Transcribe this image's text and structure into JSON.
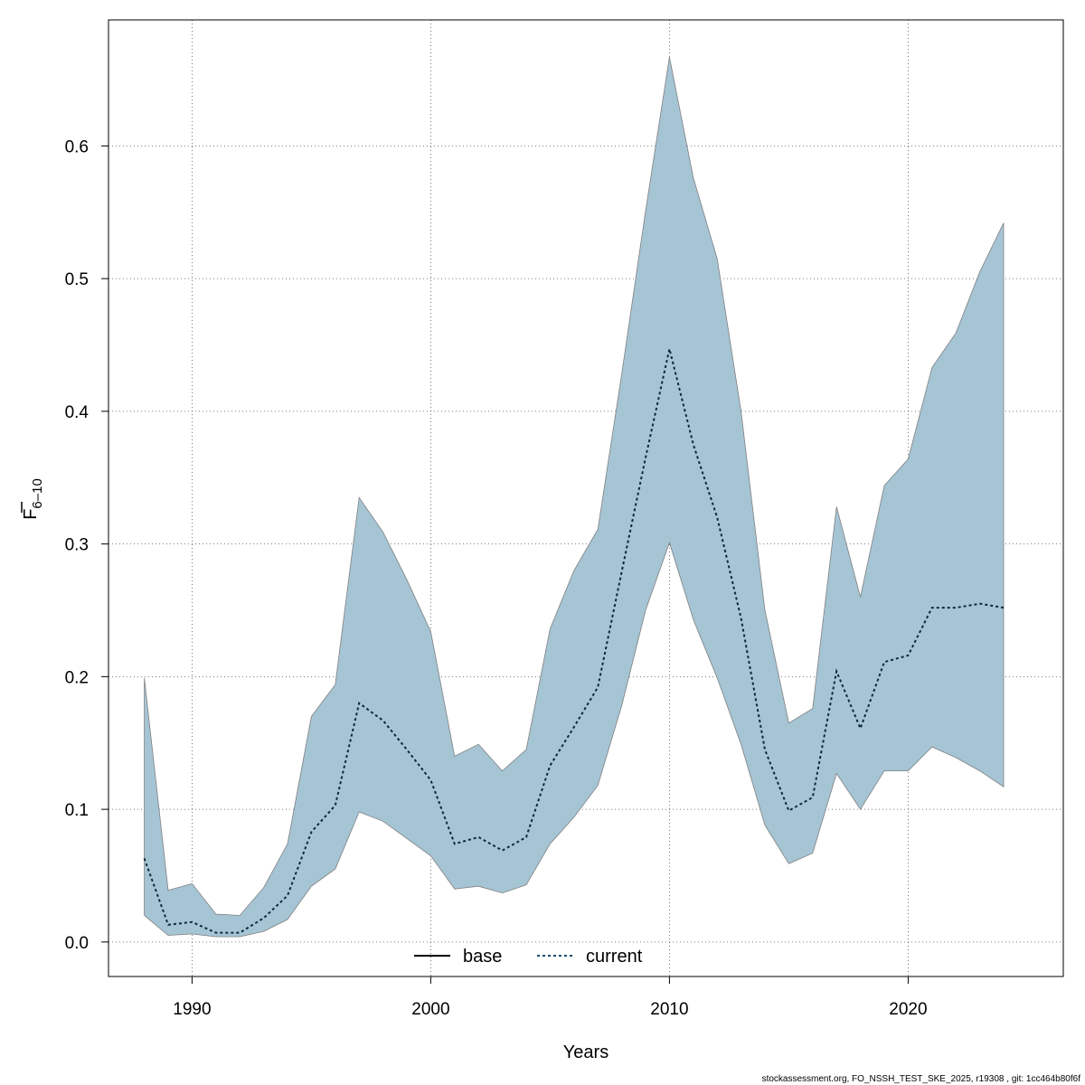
{
  "chart_data": {
    "type": "area",
    "xlabel": "Years",
    "ylabel": {
      "main": "F",
      "subscript": "6–10"
    },
    "xlim": [
      1986.5,
      2026.5
    ],
    "ylim": [
      -0.026,
      0.695
    ],
    "x_ticks": [
      1990,
      2000,
      2010,
      2020
    ],
    "y_ticks": [
      0.0,
      0.1,
      0.2,
      0.3,
      0.4,
      0.5,
      0.6
    ],
    "y_tick_labels": [
      "0.0",
      "0.1",
      "0.2",
      "0.3",
      "0.4",
      "0.5",
      "0.6"
    ],
    "grid": true,
    "legend_placement": "bottom",
    "legend": [
      {
        "label": "base",
        "style": "solid",
        "color": "#000000"
      },
      {
        "label": "current",
        "style": "dotted",
        "color": "#0a4d6e"
      }
    ],
    "band_color": "#a5c4d4",
    "band_edge_color": "#808080",
    "x": [
      1988,
      1989,
      1990,
      1991,
      1992,
      1993,
      1994,
      1995,
      1996,
      1997,
      1998,
      1999,
      2000,
      2001,
      2002,
      2003,
      2004,
      2005,
      2006,
      2007,
      2008,
      2009,
      2010,
      2011,
      2012,
      2013,
      2014,
      2015,
      2016,
      2017,
      2018,
      2019,
      2020,
      2021,
      2022,
      2023,
      2024
    ],
    "series": [
      {
        "name": "current",
        "values": [
          0.063,
          0.013,
          0.015,
          0.007,
          0.007,
          0.018,
          0.035,
          0.083,
          0.103,
          0.18,
          0.167,
          0.145,
          0.122,
          0.074,
          0.079,
          0.069,
          0.079,
          0.133,
          0.162,
          0.192,
          0.279,
          0.365,
          0.447,
          0.375,
          0.32,
          0.244,
          0.145,
          0.099,
          0.109,
          0.204,
          0.161,
          0.211,
          0.216,
          0.252,
          0.252,
          0.255,
          0.252
        ],
        "lower": [
          0.02,
          0.005,
          0.006,
          0.004,
          0.004,
          0.008,
          0.017,
          0.042,
          0.055,
          0.098,
          0.091,
          0.078,
          0.065,
          0.04,
          0.042,
          0.037,
          0.043,
          0.074,
          0.094,
          0.118,
          0.178,
          0.25,
          0.301,
          0.243,
          0.199,
          0.149,
          0.088,
          0.059,
          0.067,
          0.127,
          0.1,
          0.129,
          0.129,
          0.147,
          0.139,
          0.129,
          0.117
        ],
        "upper": [
          0.199,
          0.039,
          0.044,
          0.021,
          0.02,
          0.041,
          0.074,
          0.17,
          0.194,
          0.335,
          0.309,
          0.273,
          0.234,
          0.14,
          0.149,
          0.129,
          0.145,
          0.236,
          0.28,
          0.311,
          0.428,
          0.551,
          0.667,
          0.576,
          0.515,
          0.4,
          0.25,
          0.165,
          0.176,
          0.328,
          0.26,
          0.344,
          0.364,
          0.433,
          0.459,
          0.505,
          0.542
        ]
      }
    ]
  },
  "footer_text": "stockassessment.org, FO_NSSH_TEST_SKE_2025, r19308 , git: 1cc464b80f6f"
}
